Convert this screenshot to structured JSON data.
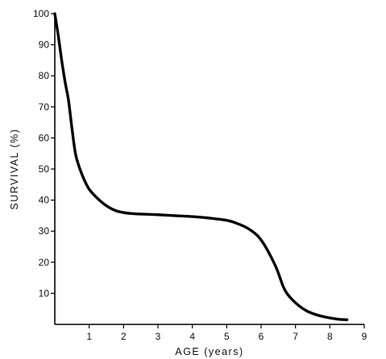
{
  "chart_data": {
    "type": "line",
    "title": "",
    "xlabel": "AGE (years)",
    "ylabel": "SURVIVAL (%)",
    "xlim": [
      0,
      9
    ],
    "ylim": [
      0,
      100
    ],
    "x_ticks": [
      1,
      2,
      3,
      4,
      5,
      6,
      7,
      8,
      9
    ],
    "y_ticks": [
      10,
      20,
      30,
      40,
      50,
      60,
      70,
      80,
      90,
      100
    ],
    "grid": false,
    "legend": "none",
    "line_color": "#000000",
    "series": [
      {
        "x": [
          0,
          0.1,
          0.2,
          0.3,
          0.4,
          0.5,
          0.6,
          0.7,
          0.8,
          0.9,
          1.0,
          1.2,
          1.4,
          1.6,
          1.8,
          2.0,
          2.2,
          2.5,
          3.0,
          3.5,
          4.0,
          4.5,
          5.0,
          5.3,
          5.6,
          5.9,
          6.1,
          6.3,
          6.45,
          6.55,
          6.65,
          6.75,
          6.9,
          7.1,
          7.3,
          7.5,
          7.7,
          7.9,
          8.1,
          8.3,
          8.5
        ],
        "y": [
          100,
          93,
          85,
          78,
          72,
          63,
          55,
          51,
          48,
          45.5,
          43.5,
          41,
          39,
          37.5,
          36.5,
          36,
          35.7,
          35.5,
          35.3,
          35,
          34.7,
          34.2,
          33.5,
          32.5,
          31,
          28.5,
          25.5,
          21.5,
          18,
          15,
          12,
          10,
          8,
          6,
          4.5,
          3.5,
          2.8,
          2.3,
          1.9,
          1.6,
          1.5
        ]
      }
    ]
  }
}
